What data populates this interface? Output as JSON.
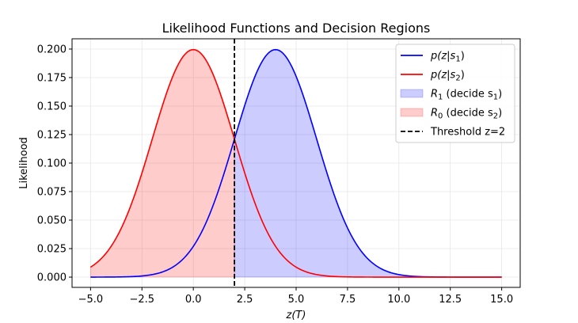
{
  "chart_data": {
    "type": "line",
    "title": "Likelihood Functions and Decision Regions",
    "xlabel": "z(T)",
    "ylabel": "Likelihood",
    "xlim": [
      -5.9,
      15.9
    ],
    "ylim": [
      -0.009,
      0.209
    ],
    "xticks": [
      -5.0,
      -2.5,
      0.0,
      2.5,
      5.0,
      7.5,
      10.0,
      12.5,
      15.0
    ],
    "xtick_labels": [
      "−5.0",
      "−2.5",
      "0.0",
      "2.5",
      "5.0",
      "7.5",
      "10.0",
      "12.5",
      "15.0"
    ],
    "yticks": [
      0.0,
      0.025,
      0.05,
      0.075,
      0.1,
      0.125,
      0.15,
      0.175,
      0.2
    ],
    "ytick_labels": [
      "0.000",
      "0.025",
      "0.050",
      "0.075",
      "0.100",
      "0.125",
      "0.150",
      "0.175",
      "0.200"
    ],
    "grid": true,
    "legend_position": "top-right",
    "threshold": 2,
    "series": [
      {
        "name": "p(z|s1)",
        "color": "#0000ff",
        "x": [
          -5,
          -4,
          -3,
          -2,
          -1,
          0,
          0.5,
          1,
          1.5,
          2,
          2.5,
          3,
          3.5,
          4,
          4.5,
          5,
          5.5,
          6,
          6.5,
          7,
          7.5,
          8,
          9,
          10,
          11,
          12,
          13,
          14,
          15
        ],
        "y": [
          0.0001,
          0.0003,
          0.0009,
          0.0027,
          0.0065,
          0.027,
          0.0362,
          0.0648,
          0.0806,
          0.121,
          0.151,
          0.176,
          0.194,
          0.1995,
          0.194,
          0.176,
          0.151,
          0.121,
          0.0806,
          0.0648,
          0.0362,
          0.027,
          0.0088,
          0.0027,
          0.0006,
          0.0001,
          0.0,
          0.0,
          0.0
        ]
      },
      {
        "name": "p(z|s2)",
        "color": "#ff0000",
        "x": [
          -5,
          -4.5,
          -4,
          -3.5,
          -3,
          -2.5,
          -2,
          -1.5,
          -1,
          -0.5,
          0,
          0.5,
          1,
          1.5,
          2,
          2.5,
          3,
          3.5,
          4,
          5,
          6,
          7,
          8,
          9,
          10,
          11,
          12,
          13,
          14,
          15
        ],
        "y": [
          0.0088,
          0.0158,
          0.027,
          0.0431,
          0.0648,
          0.0913,
          0.121,
          0.1506,
          0.176,
          0.1933,
          0.1995,
          0.1933,
          0.176,
          0.1506,
          0.121,
          0.0913,
          0.0648,
          0.0431,
          0.027,
          0.0088,
          0.0027,
          0.0004,
          0.0001,
          0.0,
          0.0,
          0.0,
          0.0,
          0.0,
          0.0,
          0.0
        ]
      }
    ],
    "regions": [
      {
        "name": "R1 (decide s1)",
        "color": "#0000ff",
        "opacity": 0.2,
        "series": "p(z|s1)",
        "x_from": 2,
        "x_to": 15
      },
      {
        "name": "R0 (decide s2)",
        "color": "#ff0000",
        "opacity": 0.2,
        "series": "p(z|s2)",
        "x_from": -5,
        "x_to": 2
      }
    ],
    "legend": [
      {
        "label_main": "p(z|s",
        "label_sub": "1",
        "label_close": ")",
        "kind": "line",
        "color": "#0000ff"
      },
      {
        "label_main": "p(z|s",
        "label_sub": "2",
        "label_close": ")",
        "kind": "line",
        "color": "#ff0000"
      },
      {
        "label_main": "R",
        "label_sub": "1",
        "label_close": " (decide s",
        "label_sub2": "1",
        "label_close2": ")",
        "kind": "patch",
        "color": "#0000ff"
      },
      {
        "label_main": "R",
        "label_sub": "0",
        "label_close": " (decide s",
        "label_sub2": "2",
        "label_close2": ")",
        "kind": "patch",
        "color": "#ff0000"
      },
      {
        "label_main": "Threshold z=2",
        "kind": "dashed",
        "color": "#000000"
      }
    ]
  }
}
